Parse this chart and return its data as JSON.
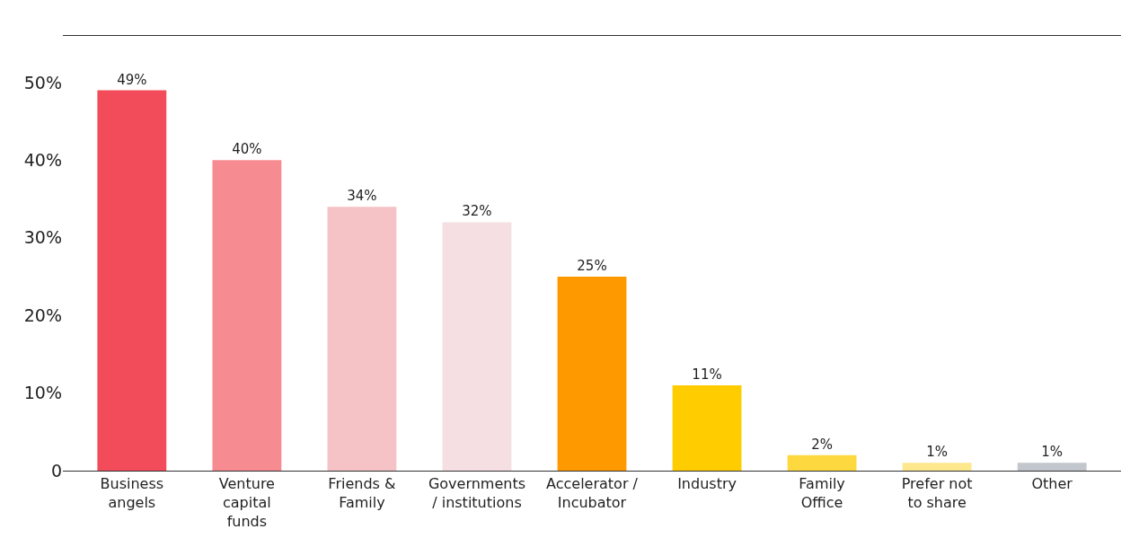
{
  "chart_data": {
    "type": "bar",
    "categories": [
      "Business\nangels",
      "Venture\ncapital\nfunds",
      "Friends &\nFamily",
      "Governments\n/ institutions",
      "Accelerator /\nIncubator",
      "Industry",
      "Family\nOffice",
      "Prefer not\nto share",
      "Other"
    ],
    "values": [
      49,
      40,
      34,
      32,
      25,
      11,
      2,
      1,
      1
    ],
    "colors": [
      "#f24b59",
      "#f68b92",
      "#f5c2c5",
      "#f5dfe2",
      "#fe9a00",
      "#ffcc00",
      "#fdd93f",
      "#fde88e",
      "#c2c6cd"
    ],
    "value_labels": [
      "49%",
      "40%",
      "34%",
      "32%",
      "25%",
      "11%",
      "2%",
      "1%",
      "1%"
    ],
    "ylim": [
      0,
      56
    ],
    "yticks": [
      0,
      {
        "value": 10,
        "label": "10%"
      },
      {
        "value": 20,
        "label": "20%"
      },
      {
        "value": 30,
        "label": "30%"
      },
      {
        "value": 40,
        "label": "40%"
      },
      {
        "value": 50,
        "label": "50%"
      }
    ]
  }
}
